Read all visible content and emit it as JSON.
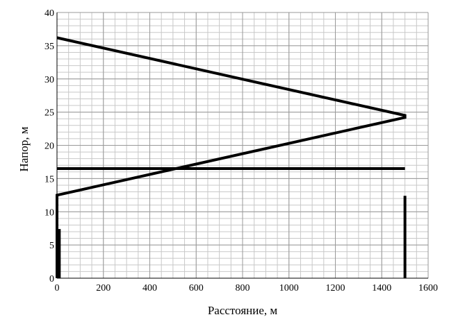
{
  "chart_data": {
    "type": "line",
    "x_label": "Расстояние, м",
    "y_label": "Напор, м",
    "xlim": [
      0,
      1600
    ],
    "ylim": [
      0,
      40
    ],
    "xticks": [
      0,
      200,
      400,
      600,
      800,
      1000,
      1200,
      1400,
      1600
    ],
    "yticks": [
      0,
      5,
      10,
      15,
      20,
      25,
      30,
      35,
      40
    ],
    "grid": true,
    "minor_grid_step": [
      50,
      1
    ],
    "series": [
      {
        "color": "#000000",
        "x": [
          0,
          1500,
          1500,
          0,
          0
        ],
        "values": [
          36.2,
          24.5,
          24.2,
          12.5,
          0
        ]
      },
      {
        "color": "#000000",
        "x": [
          0,
          1500
        ],
        "values": [
          16.5,
          16.5
        ]
      },
      {
        "color": "#000000",
        "x": [
          1500,
          1500
        ],
        "values": [
          12.4,
          0
        ]
      },
      {
        "color": "#000000",
        "x": [
          10,
          10
        ],
        "values": [
          7.4,
          0
        ]
      }
    ]
  }
}
